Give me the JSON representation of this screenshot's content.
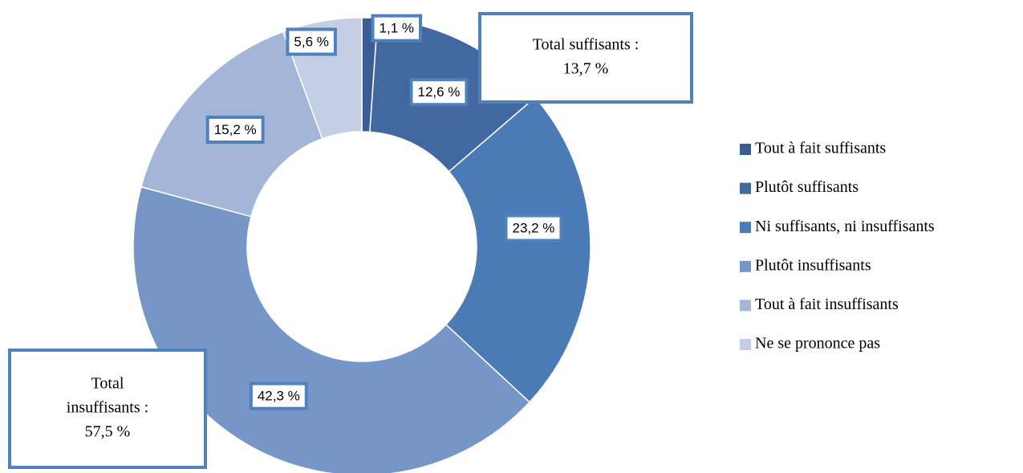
{
  "chart_data": {
    "type": "donut",
    "categories": [
      "Tout à fait suffisants",
      "Plutôt suffisants",
      "Ni suffisants, ni insuffisants",
      "Plutôt insuffisants",
      "Tout à fait insuffisants",
      "Ne se prononce pas"
    ],
    "values": [
      1.1,
      12.6,
      23.2,
      42.3,
      15.2,
      5.6
    ],
    "value_labels": [
      "1,1 %",
      "12,6 %",
      "23,2 %",
      "42,3 %",
      "15,2 %",
      "5,6 %"
    ],
    "colors": [
      "#3a5e94",
      "#42699f",
      "#4a7bb7",
      "#7696c8",
      "#a3b6d8",
      "#c4cfe6"
    ],
    "annotations": [
      {
        "lines": [
          "Total suffisants :",
          "13,7 %"
        ]
      },
      {
        "lines": [
          "Total",
          "insuffisants :",
          "57,5 %"
        ]
      }
    ],
    "legend": "right"
  }
}
